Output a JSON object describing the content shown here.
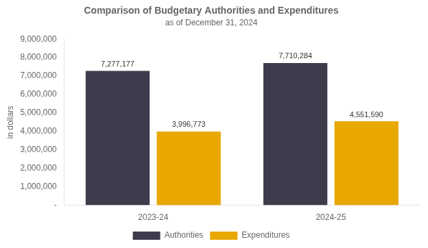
{
  "chart_data": {
    "type": "bar",
    "title": "Comparison of Budgetary Authorities and Expenditures",
    "subtitle": "as of December 31, 2024",
    "y_label": "in dollars",
    "categories": [
      "2023-24",
      "2024-25"
    ],
    "series": [
      {
        "name": "Authorities",
        "color": "#3C3C4C",
        "values": [
          7277177,
          7710284
        ],
        "value_labels": [
          "7,277,177",
          "7,710,284"
        ]
      },
      {
        "name": "Expenditures",
        "color": "#E8A800",
        "values": [
          3996773,
          4551590
        ],
        "value_labels": [
          "3,996,773",
          "4,551,590"
        ]
      }
    ],
    "ylim": [
      0,
      9000000
    ],
    "yticks": [
      {
        "value": 0,
        "label": "-"
      },
      {
        "value": 1000000,
        "label": "1,000,000"
      },
      {
        "value": 2000000,
        "label": "2,000,000"
      },
      {
        "value": 3000000,
        "label": "3,000,000"
      },
      {
        "value": 4000000,
        "label": "4,000,000"
      },
      {
        "value": 5000000,
        "label": "5,000,000"
      },
      {
        "value": 6000000,
        "label": "6,000,000"
      },
      {
        "value": 7000000,
        "label": "7,000,000"
      },
      {
        "value": 8000000,
        "label": "8,000,000"
      },
      {
        "value": 9000000,
        "label": "9,000,000"
      }
    ],
    "grid": false,
    "legend": "bottom",
    "data_labels": true
  }
}
